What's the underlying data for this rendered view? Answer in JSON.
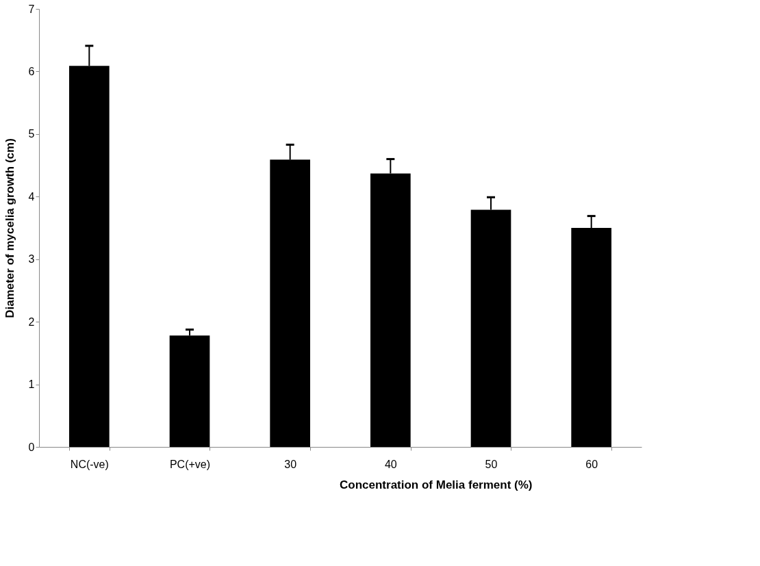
{
  "chart_data": {
    "type": "bar",
    "xlabel": "Concentration of Melia ferment (%)",
    "ylabel": "Diameter of mycelia growth (cm)",
    "categories": [
      "NC(-ve)",
      "PC(+ve)",
      "30",
      "40",
      "50",
      "60"
    ],
    "values": [
      6.09,
      1.78,
      4.59,
      4.37,
      3.79,
      3.5
    ],
    "errors": [
      [
        6.09,
        6.41
      ],
      [
        1.78,
        1.875
      ],
      [
        4.59,
        4.83
      ],
      [
        4.37,
        4.6
      ],
      [
        3.79,
        3.99
      ],
      [
        3.5,
        3.69
      ]
    ],
    "color": "#000000",
    "ylim": [
      0,
      7
    ],
    "yticks": [
      0,
      1,
      2,
      3,
      4,
      5,
      6,
      7
    ],
    "grid": false
  }
}
